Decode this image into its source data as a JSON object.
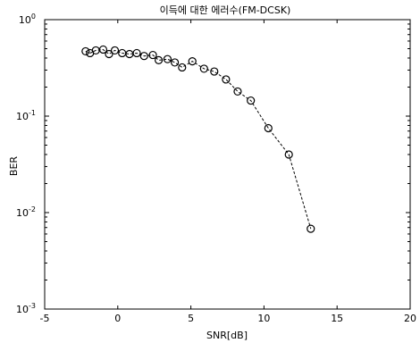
{
  "chart_data": {
    "type": "line",
    "title": "이득에 대한 에러수(FM-DCSK)",
    "xlabel": "SNR[dB]",
    "ylabel": "BER",
    "xlim": [
      -5,
      20
    ],
    "ylim": [
      0.001,
      1
    ],
    "yscale": "log",
    "grid": false,
    "x_ticks": [
      -5,
      0,
      5,
      10,
      15,
      20
    ],
    "y_ticks": [
      {
        "value": 1,
        "base": "10",
        "exp": "0"
      },
      {
        "value": 0.1,
        "base": "10",
        "exp": "-1"
      },
      {
        "value": 0.01,
        "base": "10",
        "exp": "-2"
      },
      {
        "value": 0.001,
        "base": "10",
        "exp": "-3"
      }
    ],
    "series": [
      {
        "marker": "circle",
        "line_style": "dashed",
        "color": "#000000",
        "points": [
          {
            "x": -2.2,
            "y": 0.47
          },
          {
            "x": -1.9,
            "y": 0.45
          },
          {
            "x": -1.5,
            "y": 0.48
          },
          {
            "x": -1.0,
            "y": 0.49
          },
          {
            "x": -0.6,
            "y": 0.44
          },
          {
            "x": -0.2,
            "y": 0.48
          },
          {
            "x": 0.3,
            "y": 0.45
          },
          {
            "x": 0.8,
            "y": 0.44
          },
          {
            "x": 1.3,
            "y": 0.45
          },
          {
            "x": 1.8,
            "y": 0.42
          },
          {
            "x": 2.4,
            "y": 0.43
          },
          {
            "x": 2.8,
            "y": 0.38
          },
          {
            "x": 3.4,
            "y": 0.39
          },
          {
            "x": 3.9,
            "y": 0.36
          },
          {
            "x": 4.4,
            "y": 0.32
          },
          {
            "x": 5.1,
            "y": 0.37
          },
          {
            "x": 5.9,
            "y": 0.31
          },
          {
            "x": 6.6,
            "y": 0.29
          },
          {
            "x": 7.4,
            "y": 0.24
          },
          {
            "x": 8.2,
            "y": 0.18
          },
          {
            "x": 9.1,
            "y": 0.145
          },
          {
            "x": 10.3,
            "y": 0.075
          },
          {
            "x": 11.7,
            "y": 0.04
          },
          {
            "x": 13.2,
            "y": 0.0068
          }
        ]
      }
    ]
  }
}
